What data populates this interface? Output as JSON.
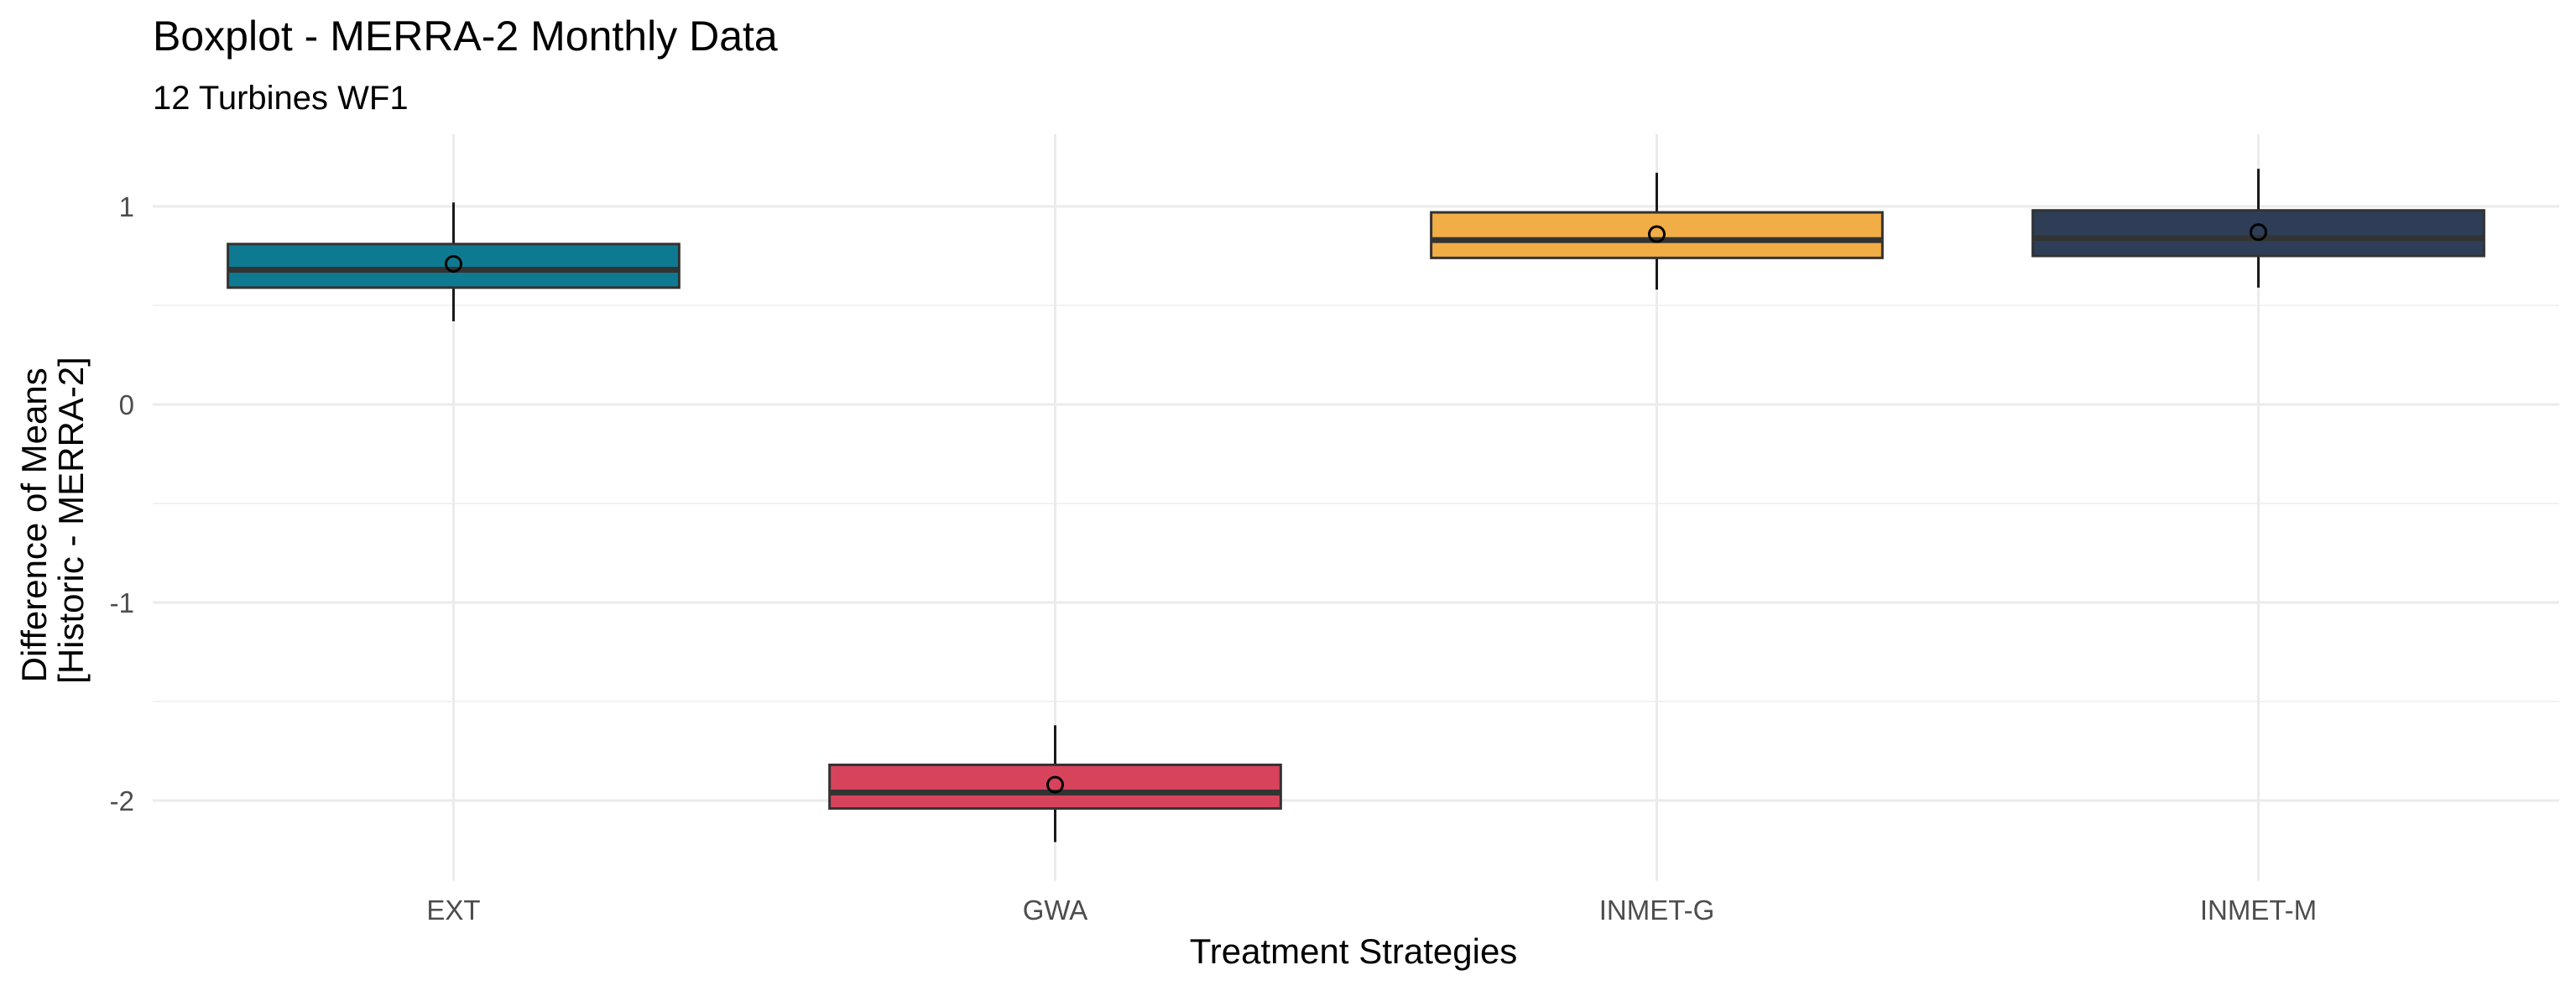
{
  "chart_data": {
    "type": "boxplot",
    "title": "Boxplot - MERRA-2 Monthly Data",
    "subtitle": "12 Turbines WF1",
    "xlabel": "Treatment Strategies",
    "ylabel_lines": [
      "Difference of Means",
      "[Historic - MERRA-2]"
    ],
    "ylim": [
      -2.35,
      1.35
    ],
    "yticks": [
      -2,
      -1,
      0,
      1
    ],
    "ytick_labels": [
      "-2",
      "-1",
      "0",
      "1"
    ],
    "grid": true,
    "legend": "none",
    "categories": [
      "EXT",
      "GWA",
      "INMET-G",
      "INMET-M"
    ],
    "boxes": [
      {
        "category": "EXT",
        "color": "#0e7a91",
        "whisker_low": 0.42,
        "q1": 0.59,
        "median": 0.68,
        "q3": 0.81,
        "whisker_high": 1.02,
        "mean": 0.71
      },
      {
        "category": "GWA",
        "color": "#d8435c",
        "whisker_low": -2.21,
        "q1": -2.04,
        "median": -1.96,
        "q3": -1.82,
        "whisker_high": -1.62,
        "mean": -1.92
      },
      {
        "category": "INMET-G",
        "color": "#f1ad46",
        "whisker_low": 0.58,
        "q1": 0.74,
        "median": 0.83,
        "q3": 0.97,
        "whisker_high": 1.17,
        "mean": 0.86
      },
      {
        "category": "INMET-M",
        "color": "#2e3e56",
        "whisker_low": 0.59,
        "q1": 0.75,
        "median": 0.84,
        "q3": 0.98,
        "whisker_high": 1.19,
        "mean": 0.87
      }
    ]
  }
}
